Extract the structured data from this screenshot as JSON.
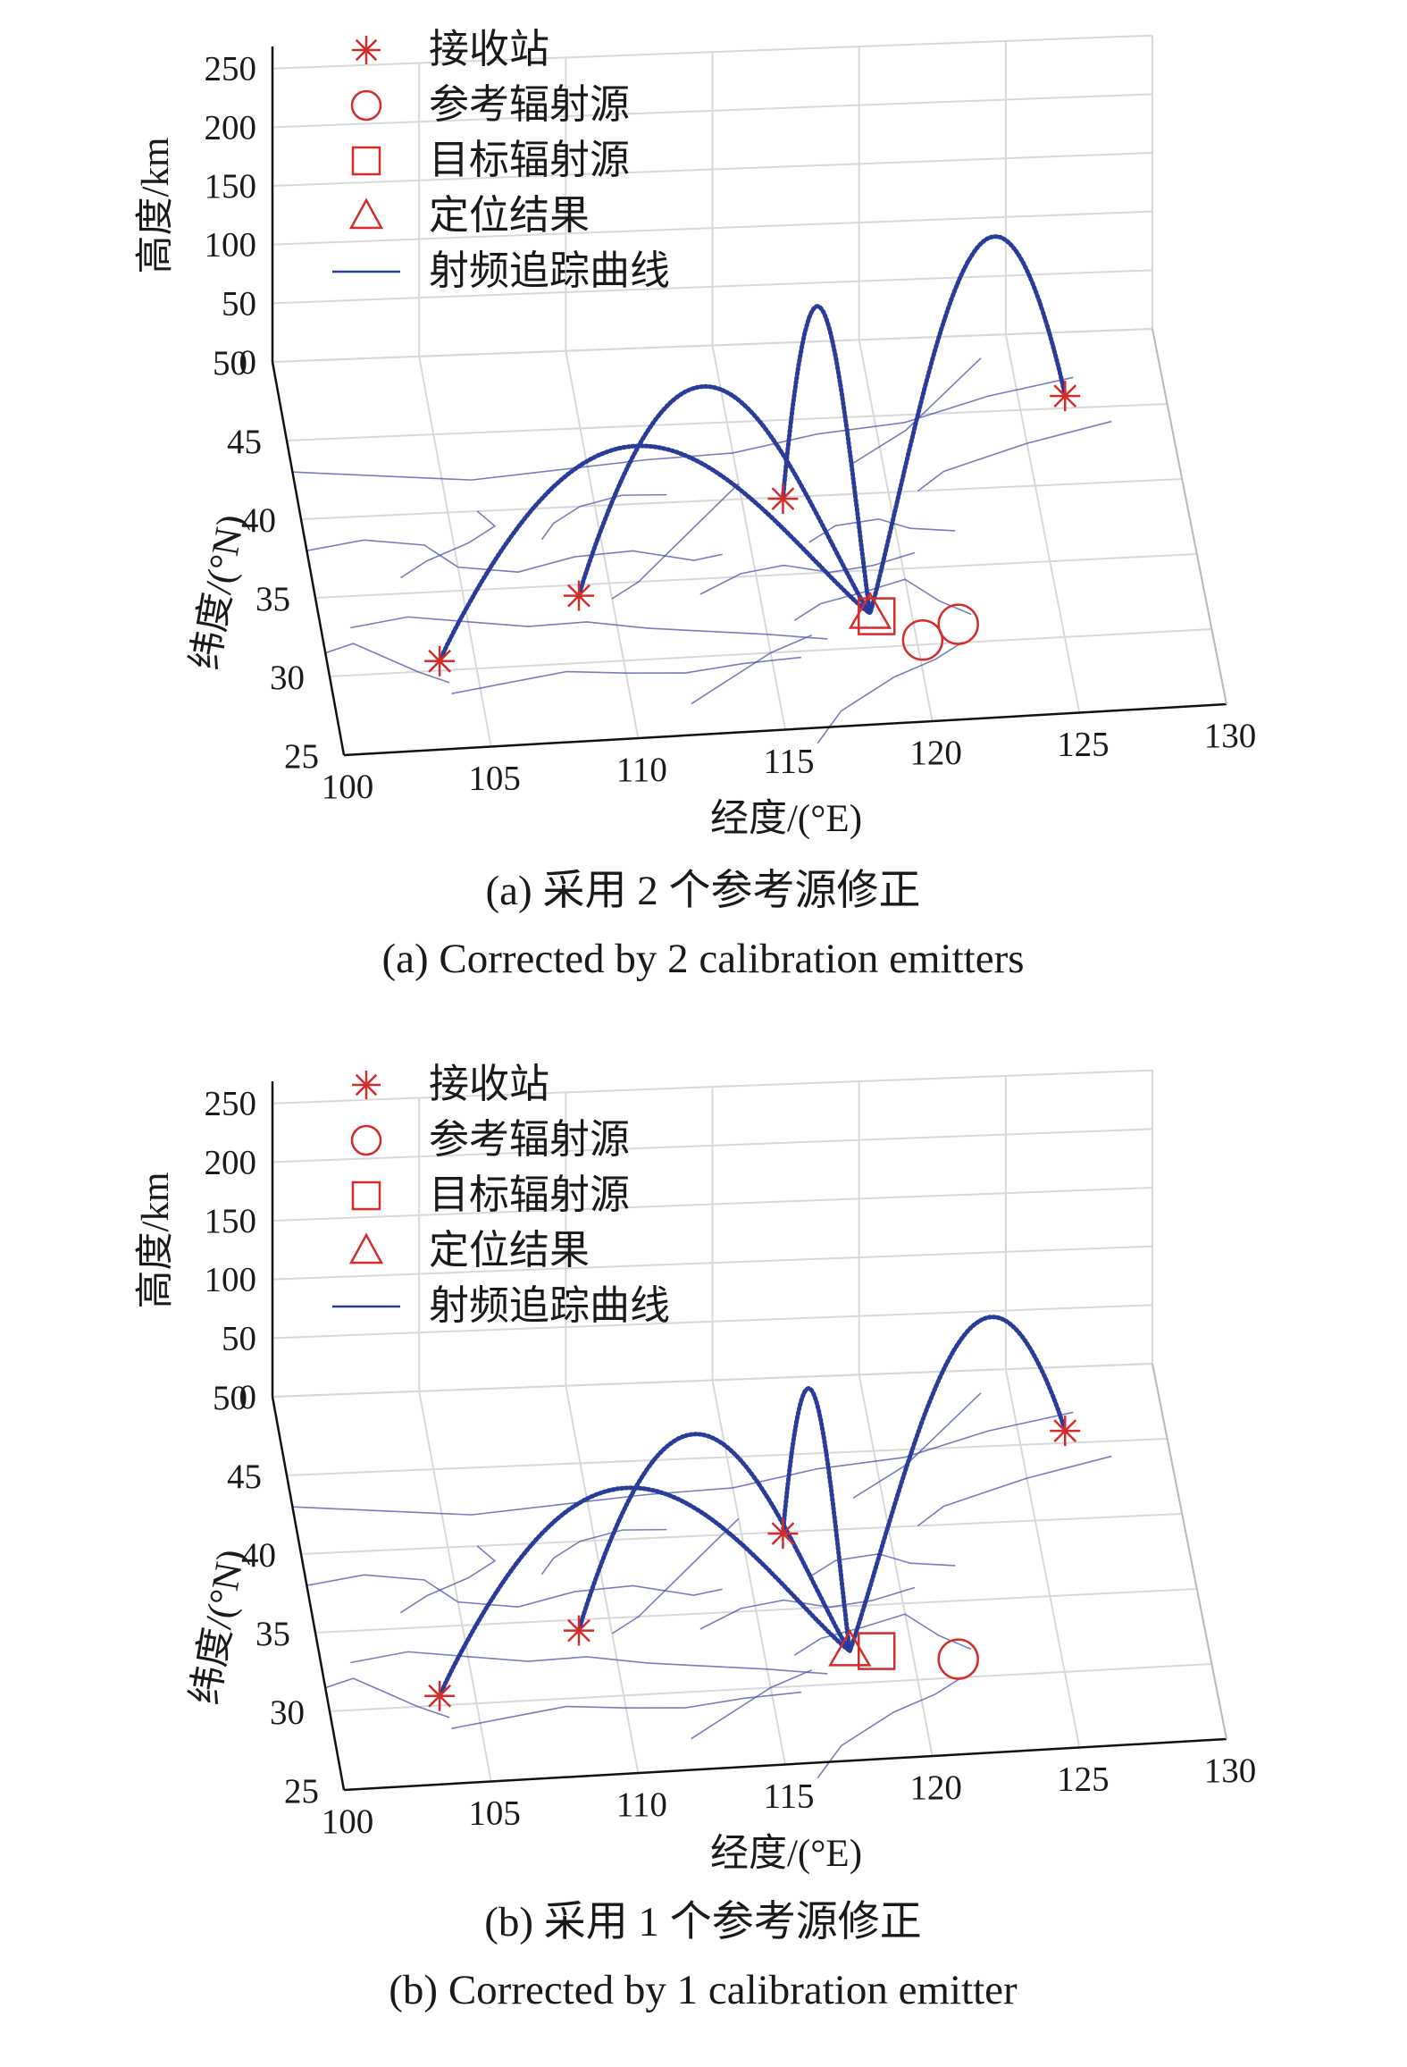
{
  "figures": [
    {
      "id": "a",
      "caption_cn": "(a) 采用 2 个参考源修正",
      "caption_en": "(a) Corrected by 2 calibration emitters"
    },
    {
      "id": "b",
      "caption_cn": "(b) 采用 1 个参考源修正",
      "caption_en": "(b) Corrected by 1 calibration emitter"
    }
  ],
  "colors": {
    "marker": "#d42b2b",
    "curve": "#2a3c9a",
    "border": "#4a52a8",
    "grid": "#d8d8d8"
  },
  "chart_data": [
    {
      "type": "scatter",
      "subtype": "3d-line-and-markers",
      "xlabel": "经度/(°E)",
      "ylabel": "纬度/(°N)",
      "zlabel": "高度/km",
      "xlim": [
        100,
        130
      ],
      "ylim": [
        25,
        50
      ],
      "zlim": [
        0,
        250
      ],
      "xticks": [
        "100",
        "105",
        "110",
        "115",
        "120",
        "125",
        "130"
      ],
      "yticks": [
        "25",
        "30",
        "35",
        "40",
        "45",
        "50"
      ],
      "zticks": [
        "0",
        "50",
        "100",
        "150",
        "200",
        "250"
      ],
      "grid": true,
      "legend_position": "top-left",
      "legend": [
        "接收站",
        "参考辐射源",
        "目标辐射源",
        "定位结果",
        "射频追踪曲线"
      ],
      "receiving_stations": [
        {
          "lon": 103.8,
          "lat": 30.6,
          "alt": 0
        },
        {
          "lon": 108.9,
          "lat": 34.3,
          "alt": 0
        },
        {
          "lon": 116.4,
          "lat": 39.9,
          "alt": 0
        },
        {
          "lon": 126.6,
          "lat": 45.8,
          "alt": 0
        }
      ],
      "reference_emitters": [
        {
          "lon": 120.2,
          "lat": 30.3,
          "alt": 0
        },
        {
          "lon": 121.5,
          "lat": 31.2,
          "alt": 0
        }
      ],
      "target_emitter": {
        "lon": 118.8,
        "lat": 32.0,
        "alt": 0
      },
      "location_result": {
        "lon": 118.6,
        "lat": 32.2,
        "alt": 0
      },
      "tracking_curves": [
        {
          "from": "station-1",
          "peak_alt": 165
        },
        {
          "from": "station-2",
          "peak_alt": 185
        },
        {
          "from": "station-3",
          "peak_alt": 205
        },
        {
          "from": "station-4",
          "peak_alt": 210
        }
      ]
    },
    {
      "type": "scatter",
      "subtype": "3d-line-and-markers",
      "xlabel": "经度/(°E)",
      "ylabel": "纬度/(°N)",
      "zlabel": "高度/km",
      "xlim": [
        100,
        130
      ],
      "ylim": [
        25,
        50
      ],
      "zlim": [
        0,
        250
      ],
      "xticks": [
        "100",
        "105",
        "110",
        "115",
        "120",
        "125",
        "130"
      ],
      "yticks": [
        "25",
        "30",
        "35",
        "40",
        "45",
        "50"
      ],
      "zticks": [
        "0",
        "50",
        "100",
        "150",
        "200",
        "250"
      ],
      "grid": true,
      "legend_position": "top-left",
      "legend": [
        "接收站",
        "参考辐射源",
        "目标辐射源",
        "定位结果",
        "射频追踪曲线"
      ],
      "receiving_stations": [
        {
          "lon": 103.8,
          "lat": 30.6,
          "alt": 0
        },
        {
          "lon": 108.9,
          "lat": 34.3,
          "alt": 0
        },
        {
          "lon": 116.4,
          "lat": 39.9,
          "alt": 0
        },
        {
          "lon": 126.6,
          "lat": 45.8,
          "alt": 0
        }
      ],
      "reference_emitters": [
        {
          "lon": 121.5,
          "lat": 31.2,
          "alt": 0
        }
      ],
      "target_emitter": {
        "lon": 118.8,
        "lat": 32.0,
        "alt": 0
      },
      "location_result": {
        "lon": 117.9,
        "lat": 32.1,
        "alt": 0
      },
      "tracking_curves": [
        {
          "from": "station-1",
          "peak_alt": 160
        },
        {
          "from": "station-2",
          "peak_alt": 175
        },
        {
          "from": "station-3",
          "peak_alt": 165
        },
        {
          "from": "station-4",
          "peak_alt": 170
        }
      ]
    }
  ]
}
